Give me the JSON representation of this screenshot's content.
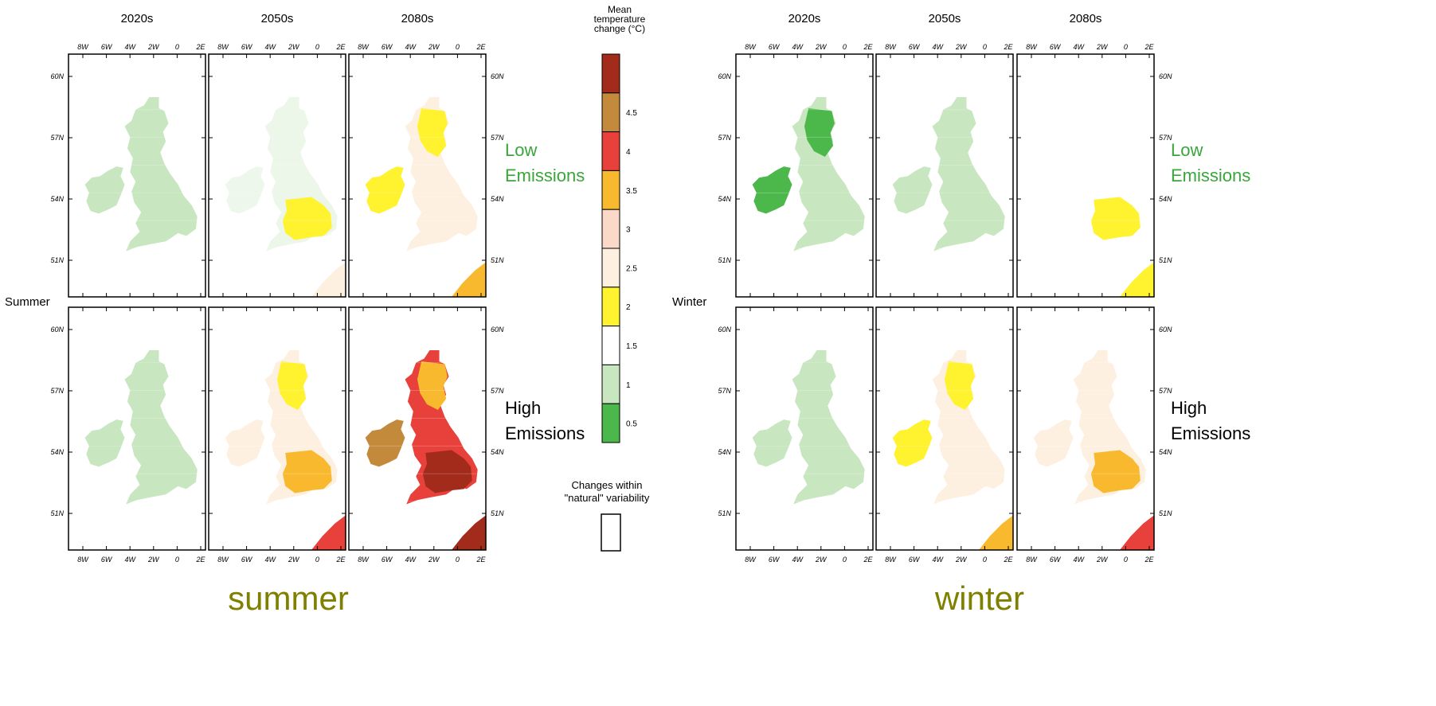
{
  "decades": [
    "2020s",
    "2050s",
    "2080s"
  ],
  "lon_ticks": [
    "8W",
    "6W",
    "4W",
    "2W",
    "0",
    "2E"
  ],
  "lat_ticks": [
    "60N",
    "57N",
    "54N",
    "51N"
  ],
  "season_labels": [
    "Summer",
    "Winter"
  ],
  "captions": [
    "summer",
    "winter"
  ],
  "scenarios": [
    {
      "line1": "Low",
      "line2": "Emissions",
      "color": "#3aa63a"
    },
    {
      "line1": "High",
      "line2": "Emissions",
      "color": "#000000"
    }
  ],
  "legend": {
    "title": [
      "Mean",
      "temperature",
      "change (°C)"
    ],
    "bins": [
      {
        "color": "#4cb84c",
        "label": "0.5"
      },
      {
        "color": "#c8e6c0",
        "label": "1"
      },
      {
        "color": "#ffffff",
        "label": "1.5"
      },
      {
        "color": "#fff22e",
        "label": "2"
      },
      {
        "color": "#fdf0e0",
        "label": "2.5"
      },
      {
        "color": "#fbd9c9",
        "label": "3"
      },
      {
        "color": "#f9b92e",
        "label": "3.5"
      },
      {
        "color": "#e8403a",
        "label": "4"
      },
      {
        "color": "#c48a3c",
        "label": "4.5"
      },
      {
        "color": "#a32b1c",
        "label": ""
      }
    ],
    "natural_label": [
      "Changes within",
      "\"natural\" variability"
    ],
    "natural_color": "#ffffff"
  },
  "maps": {
    "summer": {
      "low": [
        "green_light",
        "white",
        "yellow"
      ],
      "high": [
        "green_light",
        "pink_orange",
        "red_brown"
      ]
    },
    "winter": {
      "low": [
        "green_dark",
        "green_light",
        "yellow_small"
      ],
      "high": [
        "green_light",
        "yellow",
        "pink_orange_red"
      ]
    }
  }
}
